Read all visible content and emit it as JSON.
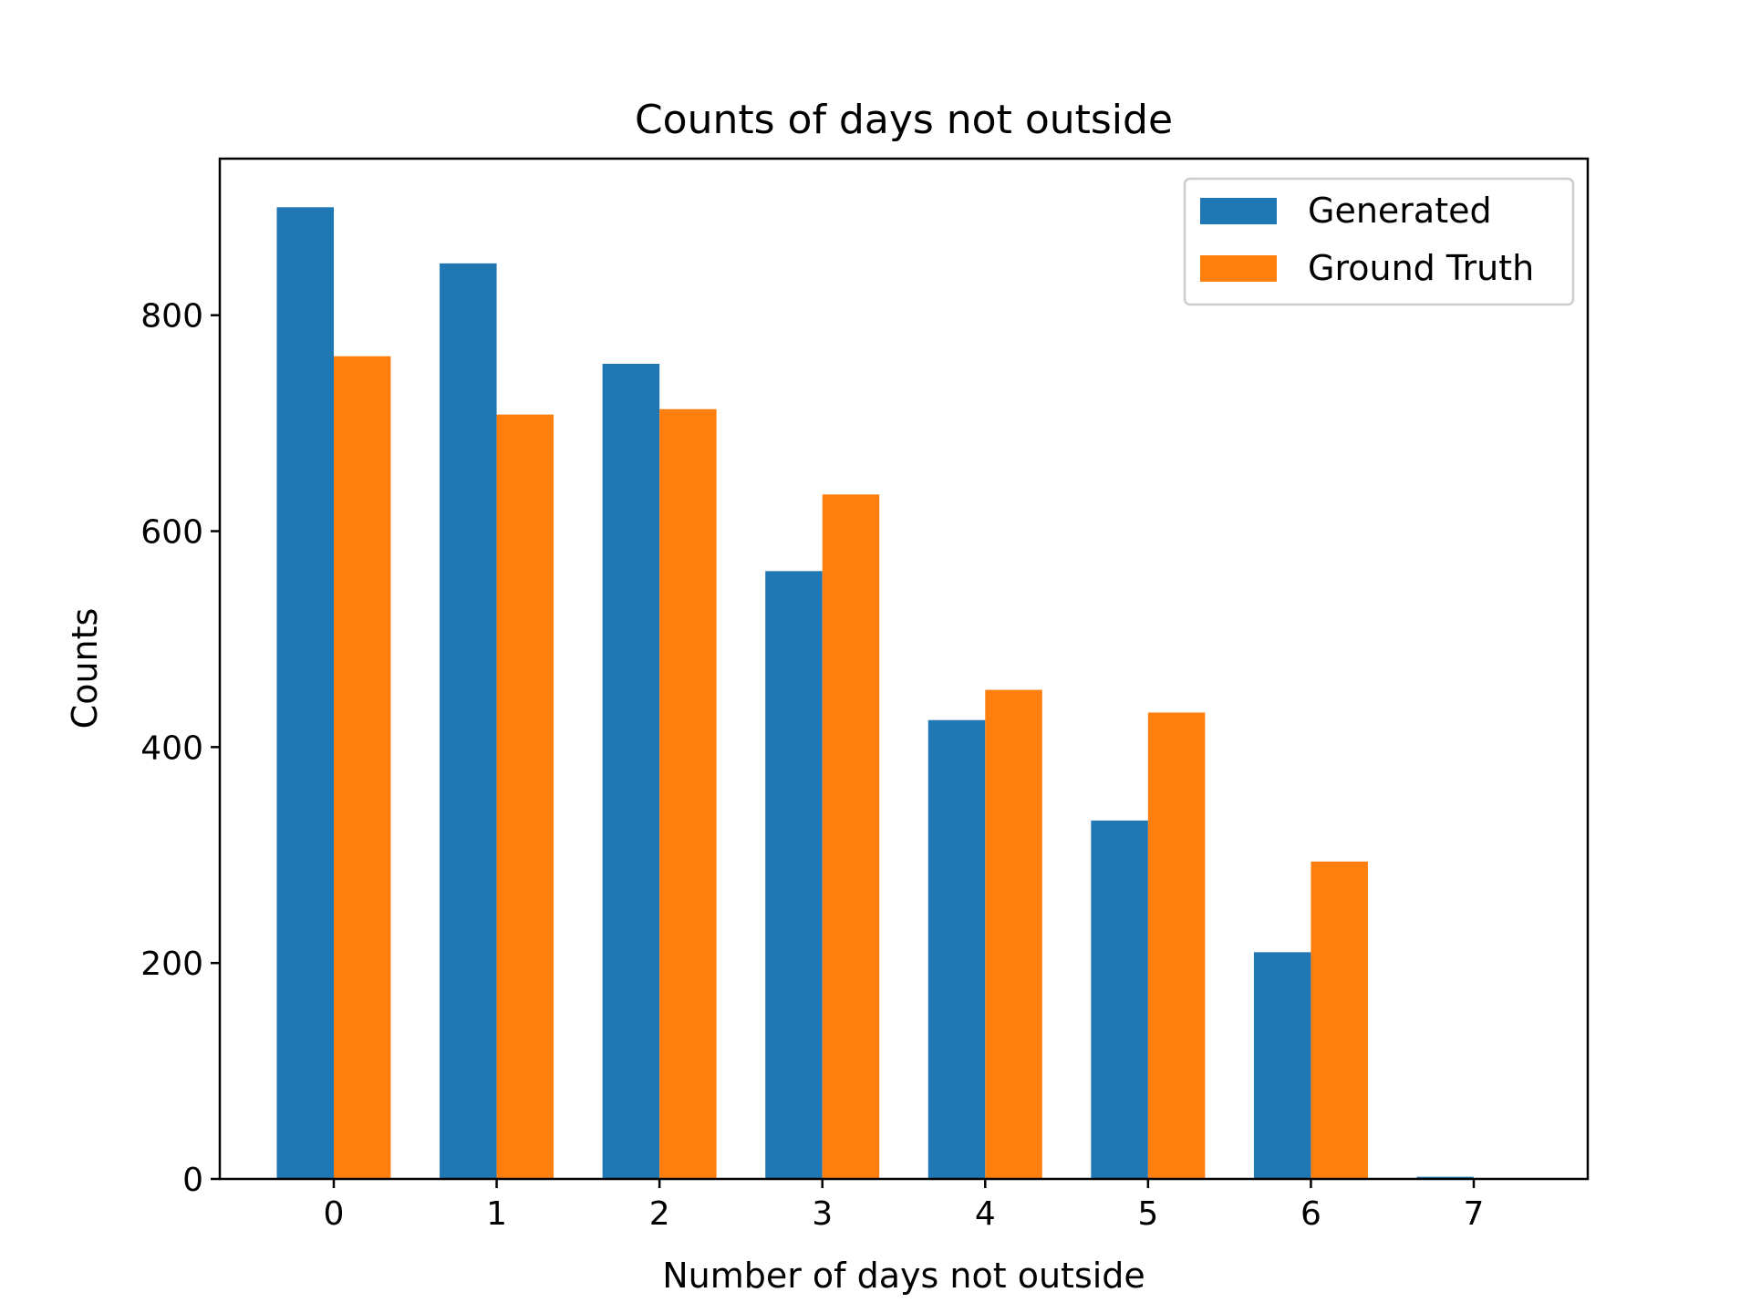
{
  "chart_data": {
    "type": "bar",
    "title": "Counts of days not outside",
    "xlabel": "Number of days not outside",
    "ylabel": "Counts",
    "categories": [
      "0",
      "1",
      "2",
      "3",
      "4",
      "5",
      "6",
      "7"
    ],
    "series": [
      {
        "name": "Generated",
        "color": "#1f77b4",
        "values": [
          900,
          848,
          755,
          563,
          425,
          332,
          210,
          2
        ]
      },
      {
        "name": "Ground Truth",
        "color": "#ff7f0e",
        "values": [
          762,
          708,
          713,
          634,
          453,
          432,
          294,
          0
        ]
      }
    ],
    "yticks": [
      0,
      200,
      400,
      600,
      800
    ],
    "ylim": [
      0,
      945
    ],
    "grid": false,
    "legend_position": "top-right"
  }
}
